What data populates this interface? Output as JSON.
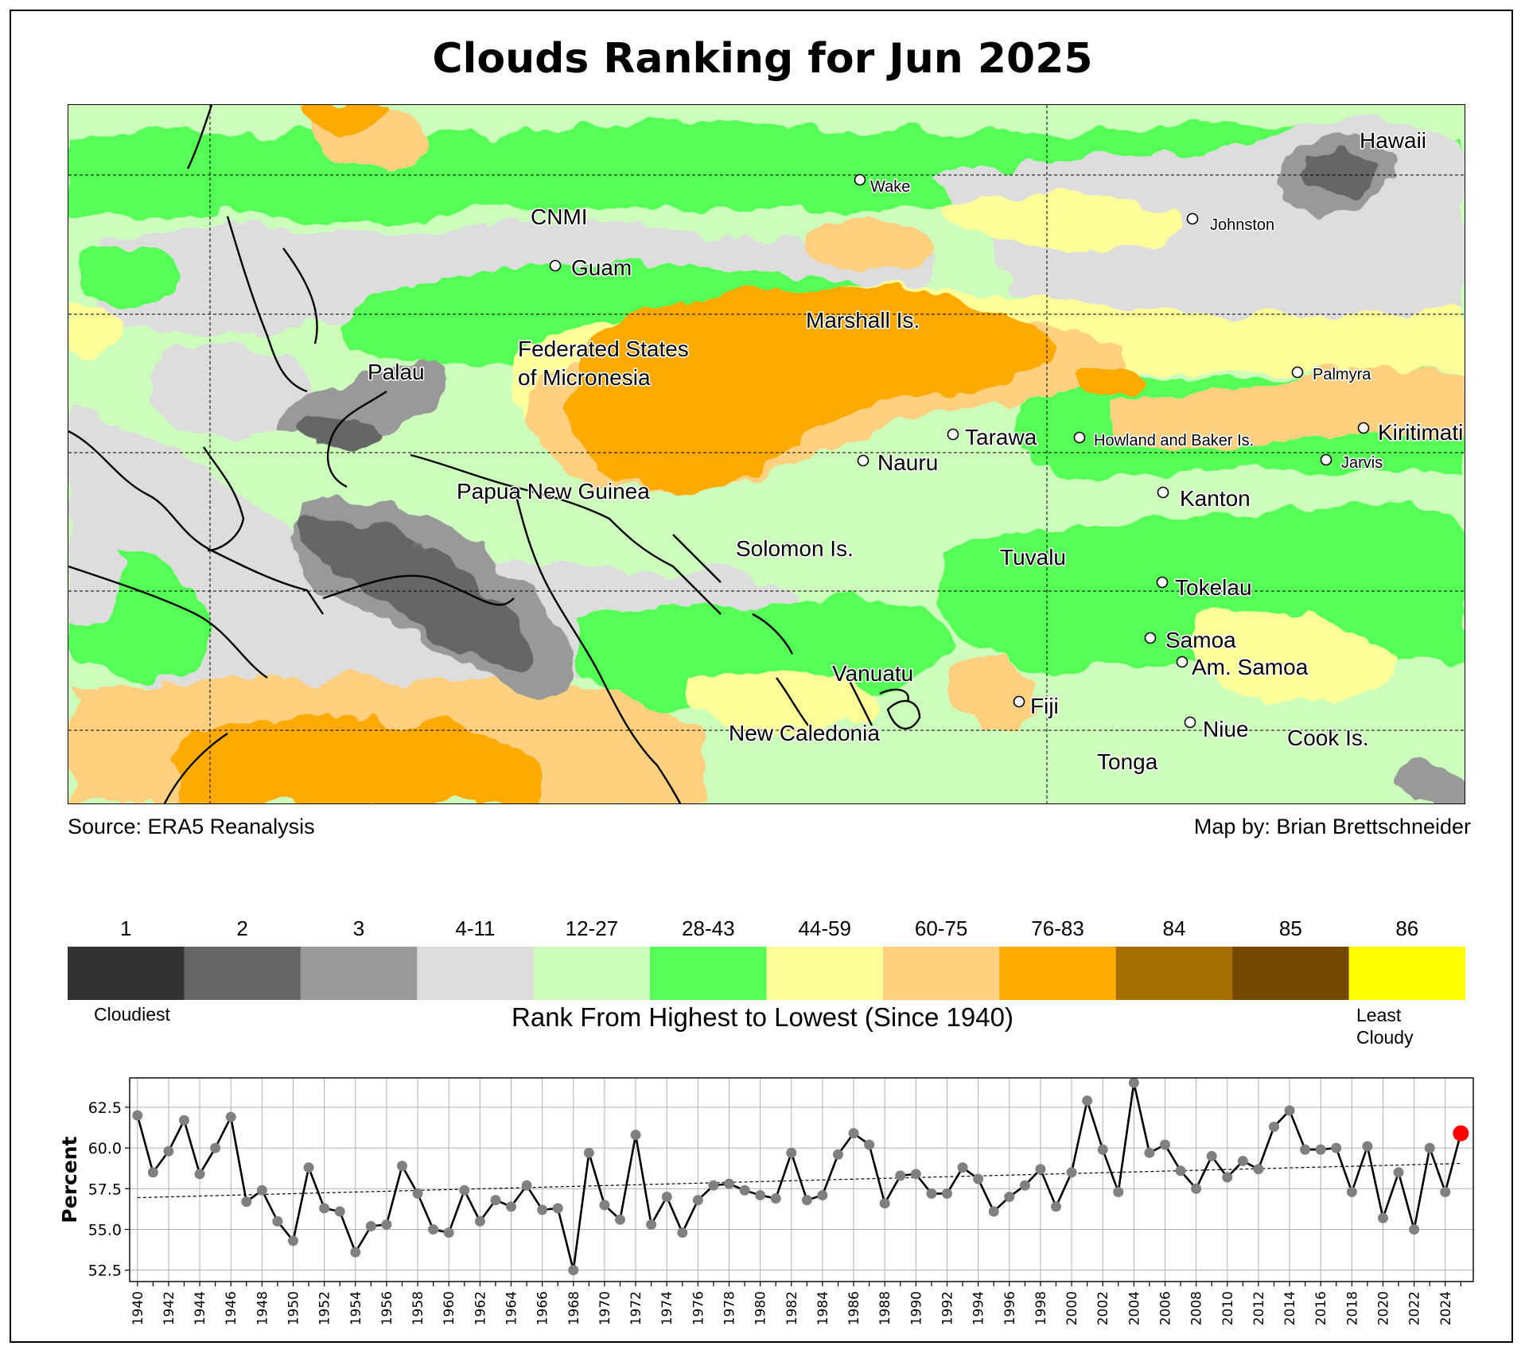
{
  "title": "Clouds Ranking for Jun 2025",
  "source": "Source: ERA5 Reanalysis",
  "credit": "Map by: Brian Brettschneider",
  "map_labels": [
    {
      "name": "Hawaii",
      "big": true,
      "dot": false
    },
    {
      "name": "Wake",
      "big": false,
      "dot": true
    },
    {
      "name": "CNMI",
      "big": true,
      "dot": false
    },
    {
      "name": "Johnston",
      "big": false,
      "dot": true
    },
    {
      "name": "Guam",
      "big": true,
      "dot": true
    },
    {
      "name": "Marshall Is.",
      "big": true,
      "dot": false
    },
    {
      "name": "Federated States",
      "big": true,
      "dot": false
    },
    {
      "name": "of Micronesia",
      "big": true,
      "dot": false
    },
    {
      "name": "Palau",
      "big": true,
      "dot": false
    },
    {
      "name": "Palmyra",
      "big": false,
      "dot": true
    },
    {
      "name": "Tarawa",
      "big": true,
      "dot": true
    },
    {
      "name": "Howland and Baker Is.",
      "big": false,
      "dot": true
    },
    {
      "name": "Kiritimati",
      "big": true,
      "dot": true
    },
    {
      "name": "Nauru",
      "big": true,
      "dot": true
    },
    {
      "name": "Jarvis",
      "big": false,
      "dot": true
    },
    {
      "name": "Papua New Guinea",
      "big": true,
      "dot": false
    },
    {
      "name": "Kanton",
      "big": true,
      "dot": true
    },
    {
      "name": "Solomon Is.",
      "big": true,
      "dot": false
    },
    {
      "name": "Tuvalu",
      "big": true,
      "dot": false
    },
    {
      "name": "Tokelau",
      "big": true,
      "dot": true
    },
    {
      "name": "Samoa",
      "big": true,
      "dot": true
    },
    {
      "name": "Am. Samoa",
      "big": true,
      "dot": true
    },
    {
      "name": "Vanuatu",
      "big": true,
      "dot": false
    },
    {
      "name": "Fiji",
      "big": true,
      "dot": true
    },
    {
      "name": "Niue",
      "big": true,
      "dot": true
    },
    {
      "name": "New Caledonia",
      "big": true,
      "dot": false
    },
    {
      "name": "Cook Is.",
      "big": true,
      "dot": false
    },
    {
      "name": "Tonga",
      "big": true,
      "dot": false
    }
  ],
  "colorbar": {
    "bins": [
      {
        "label": "1",
        "color": "#333333"
      },
      {
        "label": "2",
        "color": "#666666"
      },
      {
        "label": "3",
        "color": "#999999"
      },
      {
        "label": "4-11",
        "color": "#dddddd"
      },
      {
        "label": "12-27",
        "color": "#ccffbb"
      },
      {
        "label": "28-43",
        "color": "#55ff55"
      },
      {
        "label": "44-59",
        "color": "#ffff99"
      },
      {
        "label": "60-75",
        "color": "#ffd080"
      },
      {
        "label": "76-83",
        "color": "#ffaa00"
      },
      {
        "label": "84",
        "color": "#a66d00"
      },
      {
        "label": "85",
        "color": "#734a00"
      },
      {
        "label": "86",
        "color": "#ffff00"
      }
    ],
    "left_label": "Cloudiest",
    "right_label_1": "Least",
    "right_label_2": "Cloudy",
    "title": "Rank From Highest to Lowest (Since 1940)"
  },
  "chart_data": {
    "type": "line",
    "ylabel": "Percent",
    "xlabel": "",
    "ylim": [
      51.8,
      64.3
    ],
    "xlim": [
      1939.5,
      2025.8
    ],
    "yticks": [
      52.5,
      55.0,
      57.5,
      60.0,
      62.5
    ],
    "grid": true,
    "x": [
      1940,
      1941,
      1942,
      1943,
      1944,
      1945,
      1946,
      1947,
      1948,
      1949,
      1950,
      1951,
      1952,
      1953,
      1954,
      1955,
      1956,
      1957,
      1958,
      1959,
      1960,
      1961,
      1962,
      1963,
      1964,
      1965,
      1966,
      1967,
      1968,
      1969,
      1970,
      1971,
      1972,
      1973,
      1974,
      1975,
      1976,
      1977,
      1978,
      1979,
      1980,
      1981,
      1982,
      1983,
      1984,
      1985,
      1986,
      1987,
      1988,
      1989,
      1990,
      1991,
      1992,
      1993,
      1994,
      1995,
      1996,
      1997,
      1998,
      1999,
      2000,
      2001,
      2002,
      2003,
      2004,
      2005,
      2006,
      2007,
      2008,
      2009,
      2010,
      2011,
      2012,
      2013,
      2014,
      2015,
      2016,
      2017,
      2018,
      2019,
      2020,
      2021,
      2022,
      2023,
      2024,
      2025
    ],
    "series": [
      {
        "values": [
          62.0,
          58.5,
          59.8,
          61.7,
          58.4,
          60.0,
          61.9,
          56.7,
          57.4,
          55.5,
          54.3,
          58.8,
          56.3,
          56.1,
          53.6,
          55.2,
          55.3,
          58.9,
          57.2,
          55.0,
          54.8,
          57.4,
          55.5,
          56.8,
          56.4,
          57.7,
          56.2,
          56.3,
          52.5,
          59.7,
          56.5,
          55.6,
          60.8,
          55.3,
          57.0,
          54.8,
          56.8,
          57.7,
          57.8,
          57.4,
          57.1,
          56.9,
          59.7,
          56.8,
          57.1,
          59.6,
          60.9,
          60.2,
          56.6,
          58.3,
          58.4,
          57.2,
          57.2,
          58.8,
          58.1,
          56.1,
          57.0,
          57.7,
          58.7,
          56.4,
          58.5,
          62.9,
          59.9,
          57.3,
          64.0,
          59.7,
          60.2,
          58.6,
          57.5,
          59.5,
          58.2,
          59.2,
          58.7,
          61.3,
          62.3,
          59.9,
          59.9,
          60.0,
          57.3,
          60.1,
          55.7,
          58.5,
          55.0,
          60.0,
          57.3,
          60.9
        ]
      }
    ],
    "trend": [
      56.95,
      59.05
    ],
    "highlight": {
      "year": 2025,
      "value": 60.9,
      "color": "#ff0000"
    }
  }
}
